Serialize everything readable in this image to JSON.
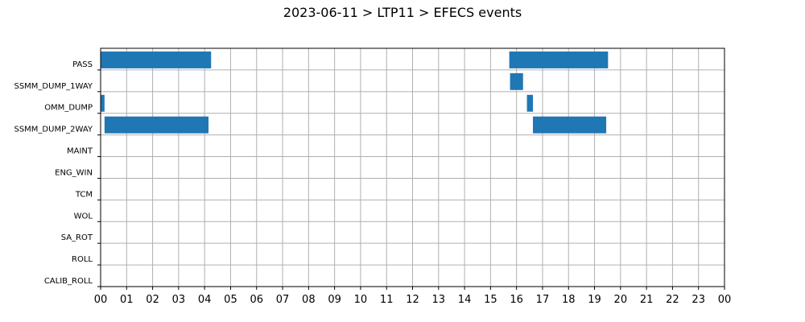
{
  "chart_data": {
    "type": "bar",
    "orientation": "horizontal-timeline",
    "title": "2023-06-11 > LTP11 > EFECS events",
    "xlabel": "",
    "ylabel": "",
    "xlim": [
      0,
      24
    ],
    "x_ticks": [
      "00",
      "01",
      "02",
      "03",
      "04",
      "05",
      "06",
      "07",
      "08",
      "09",
      "10",
      "11",
      "12",
      "13",
      "14",
      "15",
      "16",
      "17",
      "18",
      "19",
      "20",
      "21",
      "22",
      "23",
      "00"
    ],
    "categories": [
      "PASS",
      "SSMM_DUMP_1WAY",
      "OMM_DUMP",
      "SSMM_DUMP_2WAY",
      "MAINT",
      "ENG_WIN",
      "TCM",
      "WOL",
      "SA_ROT",
      "ROLL",
      "CALIB_ROLL"
    ],
    "grid": true,
    "bar_color": "#1f77b4",
    "events": [
      {
        "category": "PASS",
        "start": 0.0,
        "end": 4.25
      },
      {
        "category": "PASS",
        "start": 15.72,
        "end": 19.52
      },
      {
        "category": "SSMM_DUMP_1WAY",
        "start": 15.75,
        "end": 16.25
      },
      {
        "category": "OMM_DUMP",
        "start": 0.0,
        "end": 0.15
      },
      {
        "category": "OMM_DUMP",
        "start": 16.4,
        "end": 16.63
      },
      {
        "category": "SSMM_DUMP_2WAY",
        "start": 0.15,
        "end": 4.15
      },
      {
        "category": "SSMM_DUMP_2WAY",
        "start": 16.63,
        "end": 19.45
      }
    ]
  }
}
